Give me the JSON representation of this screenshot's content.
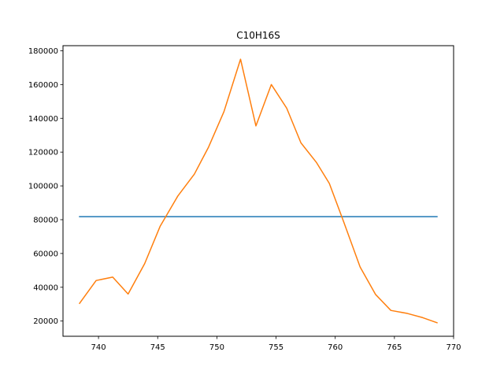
{
  "chart_data": {
    "type": "line",
    "title": "C10H16S",
    "xlabel": "",
    "ylabel": "",
    "xlim": [
      737.0,
      770.0
    ],
    "ylim": [
      11000,
      183000
    ],
    "xticks": [
      740,
      745,
      750,
      755,
      760,
      765,
      770
    ],
    "yticks": [
      20000,
      40000,
      60000,
      80000,
      100000,
      120000,
      140000,
      160000,
      180000
    ],
    "grid": false,
    "legend": "none",
    "series": [
      {
        "color": "#1f77b4",
        "x": [
          738.4,
          768.6
        ],
        "y": [
          81800,
          81800
        ]
      },
      {
        "color": "#ff7f0e",
        "x": [
          738.4,
          739.8,
          741.2,
          742.5,
          743.9,
          745.2,
          746.7,
          748.1,
          749.3,
          750.6,
          752.0,
          753.3,
          754.6,
          755.9,
          757.1,
          758.4,
          759.5,
          760.7,
          762.1,
          763.4,
          764.7,
          766.1,
          767.4,
          768.6
        ],
        "y": [
          30500,
          44000,
          46000,
          36000,
          54000,
          76000,
          94000,
          107000,
          123000,
          144000,
          175000,
          135500,
          160000,
          146000,
          125500,
          114000,
          101500,
          79000,
          52000,
          35800,
          26300,
          24500,
          22000,
          19000
        ]
      }
    ]
  }
}
